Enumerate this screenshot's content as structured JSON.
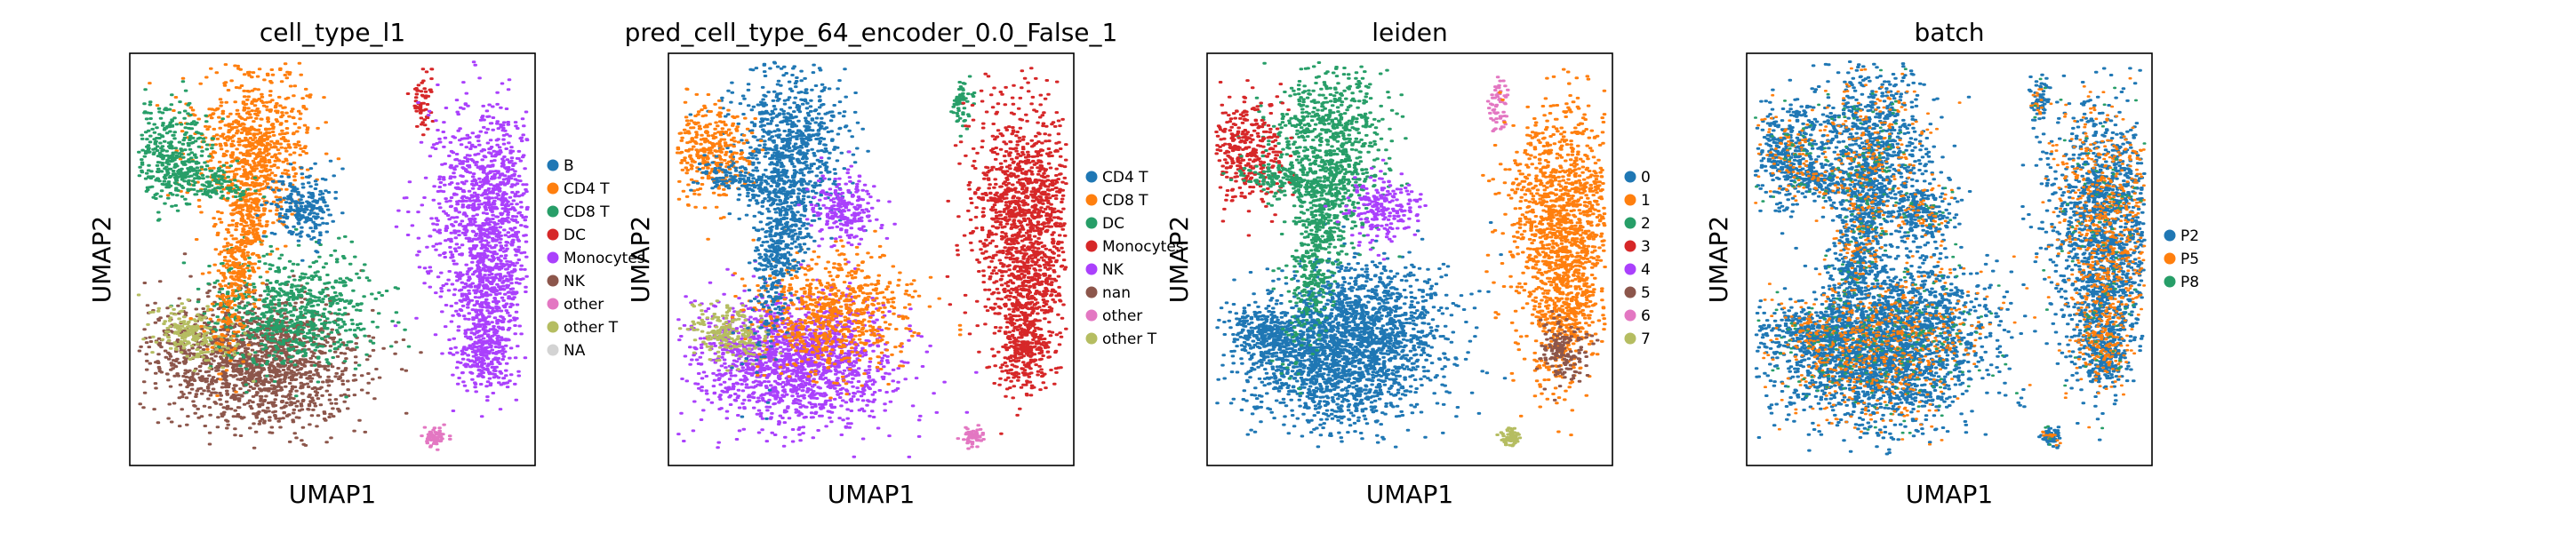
{
  "colors": {
    "blue": "#1f77b4",
    "orange": "#ff7f0e",
    "green": "#279e68",
    "red": "#d62728",
    "purple": "#aa40fc",
    "brown": "#8c564b",
    "pink": "#e377c2",
    "olive": "#b5bd61",
    "gray": "#d3d3d3"
  },
  "chart_data": [
    {
      "type": "scatter",
      "title": "cell_type_l1",
      "xlabel": "UMAP1",
      "ylabel": "UMAP2",
      "grid": false,
      "legend_position": "right",
      "legend": [
        {
          "label": "B",
          "color": "#1f77b4"
        },
        {
          "label": "CD4 T",
          "color": "#ff7f0e"
        },
        {
          "label": "CD8 T",
          "color": "#279e68"
        },
        {
          "label": "DC",
          "color": "#d62728"
        },
        {
          "label": "Monocytes",
          "color": "#aa40fc"
        },
        {
          "label": "NK",
          "color": "#8c564b"
        },
        {
          "label": "other",
          "color": "#e377c2"
        },
        {
          "label": "other T",
          "color": "#b5bd61"
        },
        {
          "label": "NA",
          "color": "#d3d3d3"
        }
      ]
    },
    {
      "type": "scatter",
      "title": "pred_cell_type_64_encoder_0.0_False_1",
      "xlabel": "UMAP1",
      "ylabel": "UMAP2",
      "grid": false,
      "legend_position": "right",
      "legend": [
        {
          "label": "CD4 T",
          "color": "#1f77b4"
        },
        {
          "label": "CD8 T",
          "color": "#ff7f0e"
        },
        {
          "label": "DC",
          "color": "#279e68"
        },
        {
          "label": "Monocytes",
          "color": "#d62728"
        },
        {
          "label": "NK",
          "color": "#aa40fc"
        },
        {
          "label": "nan",
          "color": "#8c564b"
        },
        {
          "label": "other",
          "color": "#e377c2"
        },
        {
          "label": "other T",
          "color": "#b5bd61"
        }
      ]
    },
    {
      "type": "scatter",
      "title": "leiden",
      "xlabel": "UMAP1",
      "ylabel": "UMAP2",
      "grid": false,
      "legend_position": "right",
      "legend": [
        {
          "label": "0",
          "color": "#1f77b4"
        },
        {
          "label": "1",
          "color": "#ff7f0e"
        },
        {
          "label": "2",
          "color": "#279e68"
        },
        {
          "label": "3",
          "color": "#d62728"
        },
        {
          "label": "4",
          "color": "#aa40fc"
        },
        {
          "label": "5",
          "color": "#8c564b"
        },
        {
          "label": "6",
          "color": "#e377c2"
        },
        {
          "label": "7",
          "color": "#b5bd61"
        }
      ]
    },
    {
      "type": "scatter",
      "title": "batch",
      "xlabel": "UMAP1",
      "ylabel": "UMAP2",
      "grid": false,
      "legend_position": "right",
      "legend": [
        {
          "label": "P2",
          "color": "#1f77b4"
        },
        {
          "label": "P5",
          "color": "#ff7f0e"
        },
        {
          "label": "P8",
          "color": "#279e68"
        }
      ]
    }
  ]
}
